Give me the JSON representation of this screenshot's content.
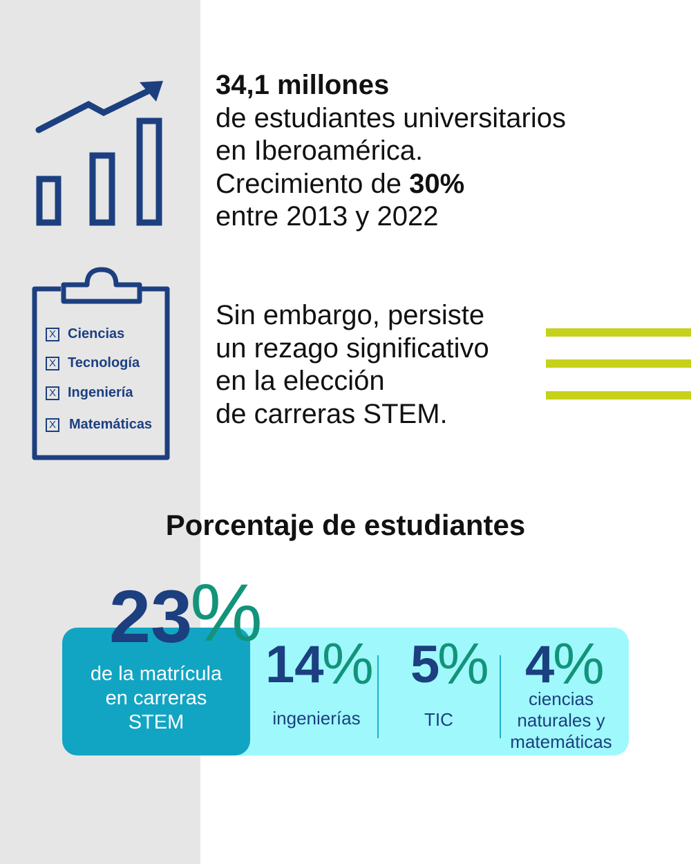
{
  "growth": {
    "headline": "34,1 millones",
    "line1": "de estudiantes universitarios",
    "line2": "en Iberoamérica.",
    "line3_prefix": "Crecimiento de ",
    "line3_value": "30%",
    "line4": "entre 2013 y 2022"
  },
  "lag": {
    "lines": [
      "Sin embargo, persiste",
      "un rezago significativo",
      "en la elección",
      "de carreras STEM."
    ]
  },
  "clipboard": {
    "mark": "X",
    "items": [
      "Ciencias",
      "Tecnología",
      "Ingeniería",
      "Matemáticas"
    ]
  },
  "section_title": "Porcentaje de estudiantes",
  "stats": {
    "main": {
      "number": "23",
      "percent_sign": "%",
      "lines": [
        "de la matrícula",
        "en carreras",
        "STEM"
      ]
    },
    "breakdown": [
      {
        "number": "14",
        "percent_sign": "%",
        "lines": [
          "ingenierías"
        ]
      },
      {
        "number": "5",
        "percent_sign": "%",
        "lines": [
          "TIC"
        ]
      },
      {
        "number": "4",
        "percent_sign": "%",
        "lines": [
          "ciencias",
          "naturales y",
          "matemáticas"
        ]
      }
    ]
  },
  "colors": {
    "navy": "#1c3f80",
    "teal_dark": "#12a5c3",
    "teal_light": "#9ff8fb",
    "green_percent": "#13937a",
    "accent_stripes": "#c5d219",
    "left_panel": "#e6e6e6"
  },
  "icons": [
    "growth-chart-icon",
    "clipboard-icon",
    "checkbox-icon",
    "accent-stripes"
  ]
}
